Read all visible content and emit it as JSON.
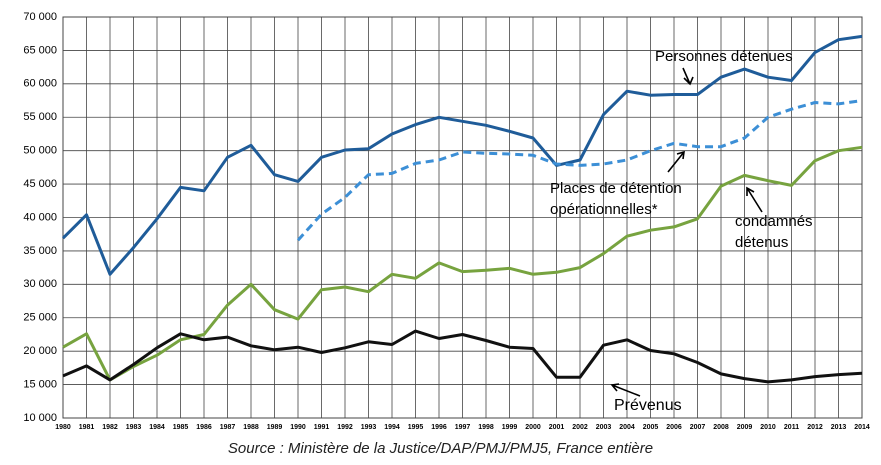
{
  "chart_data": {
    "type": "line",
    "source": "Source : Ministère de la Justice/DAP/PMJ/PMJ5, France entière",
    "categories": [
      "1980",
      "1981",
      "1982",
      "1983",
      "1984",
      "1985",
      "1986",
      "1987",
      "1988",
      "1989",
      "1990",
      "1991",
      "1992",
      "1993",
      "1994",
      "1995",
      "1996",
      "1997",
      "1998",
      "1999",
      "2000",
      "2001",
      "2002",
      "2003",
      "2004",
      "2005",
      "2006",
      "2007",
      "2008",
      "2009",
      "2010",
      "2011",
      "2012",
      "2013",
      "2014"
    ],
    "series": [
      {
        "name": "Personnes détenues",
        "color": "#1f5c99",
        "dashed": false,
        "values": [
          36900,
          40400,
          31500,
          35500,
          39800,
          44500,
          44000,
          49000,
          50800,
          46400,
          45400,
          49000,
          50100,
          50300,
          52500,
          53900,
          55000,
          54400,
          53800,
          52900,
          51900,
          47800,
          48600,
          55400,
          58900,
          58300,
          58400,
          58400,
          61000,
          62200,
          61000,
          60500,
          64700,
          66600,
          67100
        ]
      },
      {
        "name": "Places de détention\nopérationnelles*",
        "color": "#3c8fd6",
        "dashed": true,
        "values": [
          null,
          null,
          null,
          null,
          null,
          null,
          null,
          null,
          null,
          null,
          36600,
          40500,
          43000,
          46400,
          46600,
          48100,
          48600,
          49800,
          49600,
          49500,
          49300,
          48000,
          47800,
          48000,
          48600,
          50000,
          51100,
          50600,
          50600,
          51900,
          55000,
          56200,
          57200,
          57000,
          57500
        ]
      },
      {
        "name": "condamnés\ndétenus",
        "color": "#77a33f",
        "dashed": false,
        "values": [
          20600,
          22600,
          15700,
          17700,
          19400,
          21700,
          22500,
          26900,
          30000,
          26200,
          24800,
          29200,
          29600,
          28900,
          31500,
          30900,
          33200,
          31900,
          32100,
          32400,
          31500,
          31800,
          32500,
          34600,
          37200,
          38100,
          38600,
          39800,
          44700,
          46300,
          45500,
          44800,
          48500,
          50000,
          50500
        ]
      },
      {
        "name": "Prévenus",
        "color": "#111111",
        "dashed": false,
        "values": [
          16300,
          17800,
          15700,
          18000,
          20500,
          22600,
          21700,
          22100,
          20800,
          20200,
          20600,
          19800,
          20500,
          21400,
          21000,
          23000,
          21900,
          22500,
          21600,
          20600,
          20400,
          16100,
          16100,
          20900,
          21700,
          20100,
          19600,
          18300,
          16600,
          15900,
          15400,
          15700,
          16200,
          16500,
          16700
        ]
      }
    ],
    "ylim": [
      10000,
      70000
    ],
    "yticks": [
      {
        "value": 10000,
        "label": "10 000"
      },
      {
        "value": 15000,
        "label": "15 000"
      },
      {
        "value": 20000,
        "label": "20 000"
      },
      {
        "value": 25000,
        "label": "25 000"
      },
      {
        "value": 30000,
        "label": "30 000"
      },
      {
        "value": 35000,
        "label": "35 000"
      },
      {
        "value": 40000,
        "label": "40 000"
      },
      {
        "value": 45000,
        "label": "45 000"
      },
      {
        "value": 50000,
        "label": "50 000"
      },
      {
        "value": 55000,
        "label": "55 000"
      },
      {
        "value": 60000,
        "label": "60 000"
      },
      {
        "value": 65000,
        "label": "65 000"
      },
      {
        "value": 70000,
        "label": "70 000"
      }
    ],
    "grid": true
  }
}
